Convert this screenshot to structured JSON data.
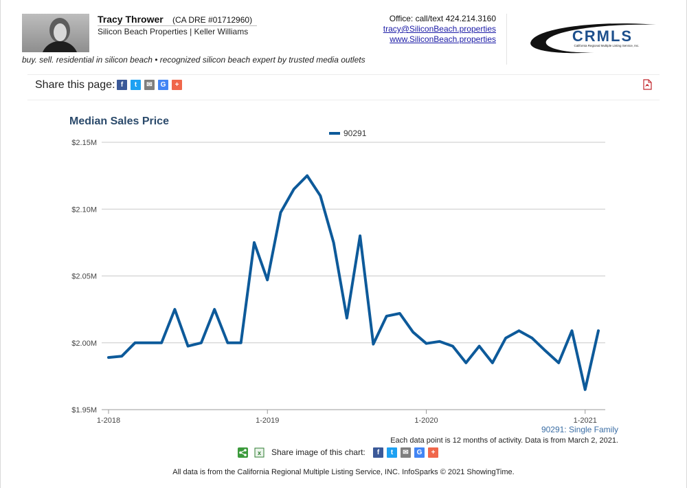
{
  "agent": {
    "name": "Tracy Thrower",
    "dre": "(CA DRE #01712960)",
    "company": "Silicon Beach Properties | Keller Williams",
    "tagline": "buy. sell. residential in silicon beach • recognized silicon beach expert by trusted media outlets"
  },
  "contact": {
    "office": "Office: call/text 424.214.3160",
    "email": "tracy@SiliconBeach.properties",
    "website": "www.SiliconBeach.properties"
  },
  "logo": {
    "text": "CRMLS",
    "subtext": "California Regional Multiple Listing Service, Inc."
  },
  "share": {
    "label": "Share this page:",
    "buttons": [
      {
        "icon": "facebook-icon",
        "glyph": "f",
        "color": "#3b5998"
      },
      {
        "icon": "twitter-icon",
        "glyph": "t",
        "color": "#1da1f2"
      },
      {
        "icon": "email-icon",
        "glyph": "✉",
        "color": "#7f7f7f"
      },
      {
        "icon": "google-icon",
        "glyph": "G",
        "color": "#4285f4"
      },
      {
        "icon": "more-icon",
        "glyph": "+",
        "color": "#f0674b"
      }
    ]
  },
  "chart_share": {
    "label": "Share image of this chart:"
  },
  "footer": {
    "text": "All data is from the California Regional Multiple Listing Service, INC. InfoSparks © 2021 ShowingTime."
  },
  "colors": {
    "series": "#0d5a9a",
    "title": "#2b4a6b",
    "grid": "#c8c8c8",
    "note": "#3b6ea5"
  },
  "chart_data": {
    "type": "line",
    "title": "Median Sales Price",
    "xlabel": "",
    "ylabel": "",
    "ylim": [
      1950000,
      2150000
    ],
    "yticks": [
      1950000,
      2000000,
      2050000,
      2100000,
      2150000
    ],
    "ytick_labels": [
      "$1.95M",
      "$2.00M",
      "$2.05M",
      "$2.10M",
      "$2.15M"
    ],
    "xticks": [
      "1-2018",
      "1-2019",
      "1-2020",
      "1-2021"
    ],
    "legend": "top-center",
    "grid": true,
    "series": [
      {
        "name": "90291",
        "x": [
          "2018-01",
          "2018-02",
          "2018-03",
          "2018-04",
          "2018-05",
          "2018-06",
          "2018-07",
          "2018-08",
          "2018-09",
          "2018-10",
          "2018-11",
          "2018-12",
          "2019-01",
          "2019-02",
          "2019-03",
          "2019-04",
          "2019-05",
          "2019-06",
          "2019-07",
          "2019-08",
          "2019-09",
          "2019-10",
          "2019-11",
          "2019-12",
          "2020-01",
          "2020-02",
          "2020-03",
          "2020-04",
          "2020-05",
          "2020-06",
          "2020-07",
          "2020-08",
          "2020-09",
          "2020-10",
          "2020-11",
          "2020-12",
          "2021-01",
          "2021-02"
        ],
        "values": [
          1989000,
          1990000,
          2000000,
          2000000,
          2000000,
          2025000,
          1997500,
          2000000,
          2025000,
          2000000,
          2000000,
          2075000,
          2047000,
          2097500,
          2115000,
          2125000,
          2110000,
          2075000,
          2018500,
          2080000,
          1999000,
          2020000,
          2022000,
          2008000,
          1999500,
          2001000,
          1997500,
          1985000,
          1997500,
          1985000,
          2003500,
          2009000,
          2003500,
          1994000,
          1985000,
          2009000,
          1965000,
          2009000
        ]
      }
    ],
    "series_note": "90291: Single Family",
    "footnote": "Each data point is 12 months of activity. Data is from March 2, 2021."
  }
}
